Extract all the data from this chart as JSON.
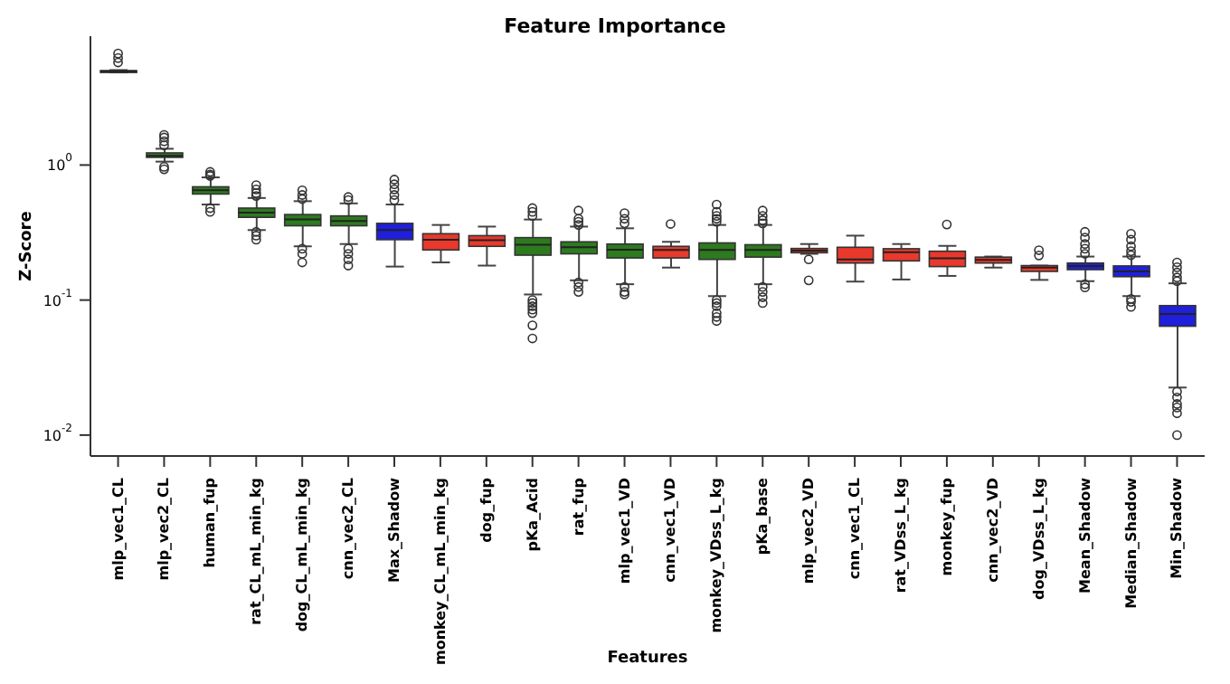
{
  "chart_data": {
    "type": "box",
    "title": "Feature Importance",
    "xlabel": "Features",
    "ylabel": "Z-Score",
    "log": "y",
    "ylim": [
      0.007,
      9
    ],
    "yticks": [
      {
        "value": 0.01,
        "label": "10$^{-2}$"
      },
      {
        "value": 0.1,
        "label": "10$^{-1}$"
      },
      {
        "value": 1,
        "label": "10$^{0}$"
      }
    ],
    "grid": false,
    "legend": false,
    "categories": [
      "mlp_vec1_CL",
      "mlp_vec2_CL",
      "human_fup",
      "rat_CL_mL_min_kg",
      "dog_CL_mL_min_kg",
      "cnn_vec2_CL",
      "Max_Shadow",
      "monkey_CL_mL_min_kg",
      "dog_fup",
      "pKa_Acid",
      "rat_fup",
      "mlp_vec1_VD",
      "cnn_vec1_VD",
      "monkey_VDss_L_kg",
      "pKa_base",
      "mlp_vec2_VD",
      "cnn_vec1_CL",
      "rat_VDss_L_kg",
      "monkey_fup",
      "cnn_vec2_VD",
      "dog_VDss_L_kg",
      "Mean_Shadow",
      "Median_Shadow",
      "Min_Shadow"
    ],
    "colors": [
      "#2d7a1f",
      "#2d7a1f",
      "#2d7a1f",
      "#2d7a1f",
      "#2d7a1f",
      "#2d7a1f",
      "#1f1fdd",
      "#e8392c",
      "#e8392c",
      "#2d7a1f",
      "#2d7a1f",
      "#2d7a1f",
      "#e8392c",
      "#2d7a1f",
      "#2d7a1f",
      "#e8392c",
      "#e8392c",
      "#e8392c",
      "#e8392c",
      "#e8392c",
      "#e8392c",
      "#1f1fdd",
      "#1f1fdd",
      "#1f1fdd"
    ],
    "boxes": [
      {
        "low": 4.85,
        "q1": 4.9,
        "median": 4.95,
        "q3": 5.0,
        "high": 5.05,
        "outliers": [
          5.75,
          6.2,
          6.7
        ]
      },
      {
        "low": 1.06,
        "q1": 1.14,
        "median": 1.17,
        "q3": 1.23,
        "high": 1.32,
        "outliers": [
          1.4,
          1.5,
          1.6,
          1.67,
          0.97,
          0.93
        ]
      },
      {
        "low": 0.51,
        "q1": 0.61,
        "median": 0.65,
        "q3": 0.69,
        "high": 0.81,
        "outliers": [
          0.83,
          0.85,
          0.89,
          0.48,
          0.45
        ]
      },
      {
        "low": 0.33,
        "q1": 0.41,
        "median": 0.445,
        "q3": 0.48,
        "high": 0.57,
        "outliers": [
          0.59,
          0.62,
          0.66,
          0.71,
          0.32,
          0.3,
          0.28
        ]
      },
      {
        "low": 0.25,
        "q1": 0.355,
        "median": 0.395,
        "q3": 0.43,
        "high": 0.54,
        "outliers": [
          0.56,
          0.6,
          0.65,
          0.24,
          0.22,
          0.19
        ]
      },
      {
        "low": 0.26,
        "q1": 0.355,
        "median": 0.385,
        "q3": 0.42,
        "high": 0.52,
        "outliers": [
          0.55,
          0.58,
          0.24,
          0.22,
          0.2,
          0.18
        ]
      },
      {
        "low": 0.177,
        "q1": 0.28,
        "median": 0.33,
        "q3": 0.37,
        "high": 0.51,
        "outliers": [
          0.55,
          0.6,
          0.66,
          0.72,
          0.78
        ]
      },
      {
        "low": 0.19,
        "q1": 0.235,
        "median": 0.28,
        "q3": 0.31,
        "high": 0.36
      },
      {
        "low": 0.18,
        "q1": 0.25,
        "median": 0.277,
        "q3": 0.3,
        "high": 0.35
      },
      {
        "low": 0.11,
        "q1": 0.215,
        "median": 0.257,
        "q3": 0.29,
        "high": 0.395,
        "outliers": [
          0.42,
          0.45,
          0.48,
          0.1,
          0.095,
          0.09,
          0.085,
          0.08,
          0.065,
          0.052
        ]
      },
      {
        "low": 0.14,
        "q1": 0.22,
        "median": 0.246,
        "q3": 0.27,
        "high": 0.35,
        "outliers": [
          0.36,
          0.38,
          0.4,
          0.46,
          0.135,
          0.125,
          0.115
        ]
      },
      {
        "low": 0.131,
        "q1": 0.205,
        "median": 0.236,
        "q3": 0.26,
        "high": 0.34,
        "outliers": [
          0.37,
          0.4,
          0.44,
          0.125,
          0.115,
          0.11
        ]
      },
      {
        "low": 0.174,
        "q1": 0.205,
        "median": 0.235,
        "q3": 0.25,
        "high": 0.27,
        "outliers": [
          0.366
        ]
      },
      {
        "low": 0.107,
        "q1": 0.2,
        "median": 0.235,
        "q3": 0.265,
        "high": 0.36,
        "outliers": [
          0.38,
          0.4,
          0.42,
          0.45,
          0.51,
          0.1,
          0.095,
          0.09,
          0.08,
          0.075,
          0.07
        ]
      },
      {
        "low": 0.131,
        "q1": 0.208,
        "median": 0.235,
        "q3": 0.257,
        "high": 0.36,
        "outliers": [
          0.37,
          0.39,
          0.42,
          0.46,
          0.125,
          0.115,
          0.105,
          0.095
        ]
      },
      {
        "low": 0.22,
        "q1": 0.224,
        "median": 0.232,
        "q3": 0.241,
        "high": 0.26,
        "outliers": [
          0.2,
          0.14
        ]
      },
      {
        "low": 0.137,
        "q1": 0.188,
        "median": 0.2,
        "q3": 0.246,
        "high": 0.3
      },
      {
        "low": 0.142,
        "q1": 0.195,
        "median": 0.226,
        "q3": 0.24,
        "high": 0.26
      },
      {
        "low": 0.151,
        "q1": 0.177,
        "median": 0.204,
        "q3": 0.23,
        "high": 0.252,
        "outliers": [
          0.363
        ]
      },
      {
        "low": 0.174,
        "q1": 0.188,
        "median": 0.198,
        "q3": 0.208,
        "high": 0.21
      },
      {
        "low": 0.141,
        "q1": 0.163,
        "median": 0.174,
        "q3": 0.18,
        "high": 0.18,
        "outliers": [
          0.214,
          0.234
        ]
      },
      {
        "low": 0.138,
        "q1": 0.168,
        "median": 0.179,
        "q3": 0.188,
        "high": 0.21,
        "outliers": [
          0.22,
          0.24,
          0.26,
          0.29,
          0.32,
          0.131,
          0.124
        ]
      },
      {
        "low": 0.107,
        "q1": 0.149,
        "median": 0.163,
        "q3": 0.179,
        "high": 0.21,
        "outliers": [
          0.215,
          0.23,
          0.25,
          0.28,
          0.31,
          0.102,
          0.097,
          0.089
        ]
      },
      {
        "low": 0.0225,
        "q1": 0.064,
        "median": 0.079,
        "q3": 0.091,
        "high": 0.133,
        "outliers": [
          0.138,
          0.147,
          0.16,
          0.175,
          0.19,
          0.021,
          0.019,
          0.017,
          0.016,
          0.0145,
          0.01
        ]
      }
    ]
  }
}
